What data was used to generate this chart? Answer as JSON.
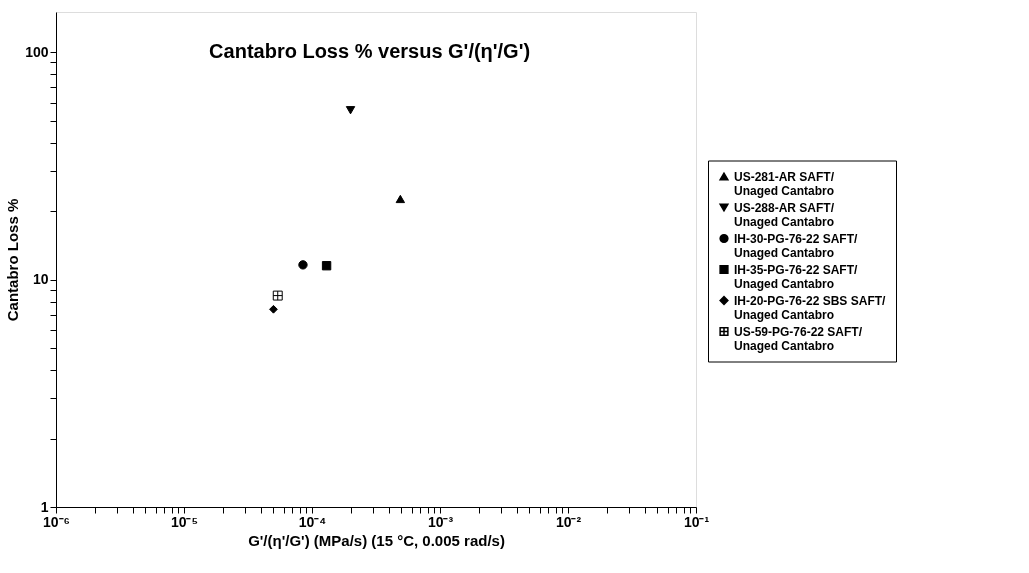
{
  "chart_data": {
    "type": "scatter",
    "title": "Cantabro Loss % versus G'/(η'/G')",
    "xlabel": "G'/(η'/G') (MPa/s) (15 °C, 0.005 rad/s)",
    "ylabel": "Cantabro Loss %",
    "log": "xy",
    "grid": false,
    "legend": "right",
    "xlim": [
      1e-06,
      0.1
    ],
    "ylim": [
      1,
      150
    ],
    "xticks": [
      {
        "value": 1e-06,
        "label": "10⁻⁶"
      },
      {
        "value": 2e-06,
        "label": null
      },
      {
        "value": 3e-06,
        "label": null
      },
      {
        "value": 4e-06,
        "label": null
      },
      {
        "value": 5e-06,
        "label": null
      },
      {
        "value": 6e-06,
        "label": null
      },
      {
        "value": 7e-06,
        "label": null
      },
      {
        "value": 8e-06,
        "label": null
      },
      {
        "value": 9e-06,
        "label": null
      },
      {
        "value": 1e-05,
        "label": "10⁻⁵"
      },
      {
        "value": 2e-05,
        "label": null
      },
      {
        "value": 3e-05,
        "label": null
      },
      {
        "value": 4e-05,
        "label": null
      },
      {
        "value": 5e-05,
        "label": null
      },
      {
        "value": 6e-05,
        "label": null
      },
      {
        "value": 7e-05,
        "label": null
      },
      {
        "value": 8e-05,
        "label": null
      },
      {
        "value": 9e-05,
        "label": null
      },
      {
        "value": 0.0001,
        "label": "10⁻⁴"
      },
      {
        "value": 0.0002,
        "label": null
      },
      {
        "value": 0.0003,
        "label": null
      },
      {
        "value": 0.0004,
        "label": null
      },
      {
        "value": 0.0005,
        "label": null
      },
      {
        "value": 0.0006,
        "label": null
      },
      {
        "value": 0.0007,
        "label": null
      },
      {
        "value": 0.0008,
        "label": null
      },
      {
        "value": 0.0009,
        "label": null
      },
      {
        "value": 0.001,
        "label": "10⁻³"
      },
      {
        "value": 0.002,
        "label": null
      },
      {
        "value": 0.003,
        "label": null
      },
      {
        "value": 0.004,
        "label": null
      },
      {
        "value": 0.005,
        "label": null
      },
      {
        "value": 0.006,
        "label": null
      },
      {
        "value": 0.007,
        "label": null
      },
      {
        "value": 0.008,
        "label": null
      },
      {
        "value": 0.009,
        "label": null
      },
      {
        "value": 0.01,
        "label": "10⁻²"
      },
      {
        "value": 0.02,
        "label": null
      },
      {
        "value": 0.03,
        "label": null
      },
      {
        "value": 0.04,
        "label": null
      },
      {
        "value": 0.05,
        "label": null
      },
      {
        "value": 0.06,
        "label": null
      },
      {
        "value": 0.07,
        "label": null
      },
      {
        "value": 0.08,
        "label": null
      },
      {
        "value": 0.09,
        "label": null
      },
      {
        "value": 0.1,
        "label": "10⁻¹"
      }
    ],
    "yticks": [
      1,
      {
        "value": 2,
        "label": null
      },
      {
        "value": 3,
        "label": null
      },
      {
        "value": 4,
        "label": null
      },
      {
        "value": 5,
        "label": null
      },
      {
        "value": 6,
        "label": null
      },
      {
        "value": 7,
        "label": null
      },
      {
        "value": 8,
        "label": null
      },
      {
        "value": 9,
        "label": null
      },
      10,
      {
        "value": 20,
        "label": null
      },
      {
        "value": 30,
        "label": null
      },
      {
        "value": 40,
        "label": null
      },
      {
        "value": 50,
        "label": null
      },
      {
        "value": 60,
        "label": null
      },
      {
        "value": 70,
        "label": null
      },
      {
        "value": 80,
        "label": null
      },
      {
        "value": 90,
        "label": null
      },
      100
    ],
    "series": [
      {
        "name": "US-281-AR SAFT/\nUnaged Cantabro",
        "color": "#000000",
        "marker": "triangle",
        "x": [
          0.00049
        ],
        "values": [
          22.6
        ]
      },
      {
        "name": "US-288-AR SAFT/\nUnaged Cantabro",
        "color": "#000000",
        "marker": "triangle-down",
        "x": [
          0.0002
        ],
        "values": [
          55.5
        ]
      },
      {
        "name": "IH-30-PG-76-22 SAFT/\nUnaged Cantabro",
        "color": "#000000",
        "marker": "circle",
        "x": [
          8.5e-05
        ],
        "values": [
          11.6
        ]
      },
      {
        "name": "IH-35-PG-76-22 SAFT/\nUnaged Cantabro",
        "color": "#000000",
        "marker": "square",
        "x": [
          0.00013
        ],
        "values": [
          11.5
        ]
      },
      {
        "name": "IH-20-PG-76-22 SBS SAFT/\nUnaged Cantabro",
        "color": "#000000",
        "marker": "diamond",
        "x": [
          5e-05
        ],
        "values": [
          7.4
        ]
      },
      {
        "name": "US-59-PG-76-22 SAFT/\nUnaged Cantabro",
        "color": "#000000",
        "marker": "cross",
        "x": [
          5.4e-05
        ],
        "values": [
          8.5
        ]
      }
    ]
  }
}
